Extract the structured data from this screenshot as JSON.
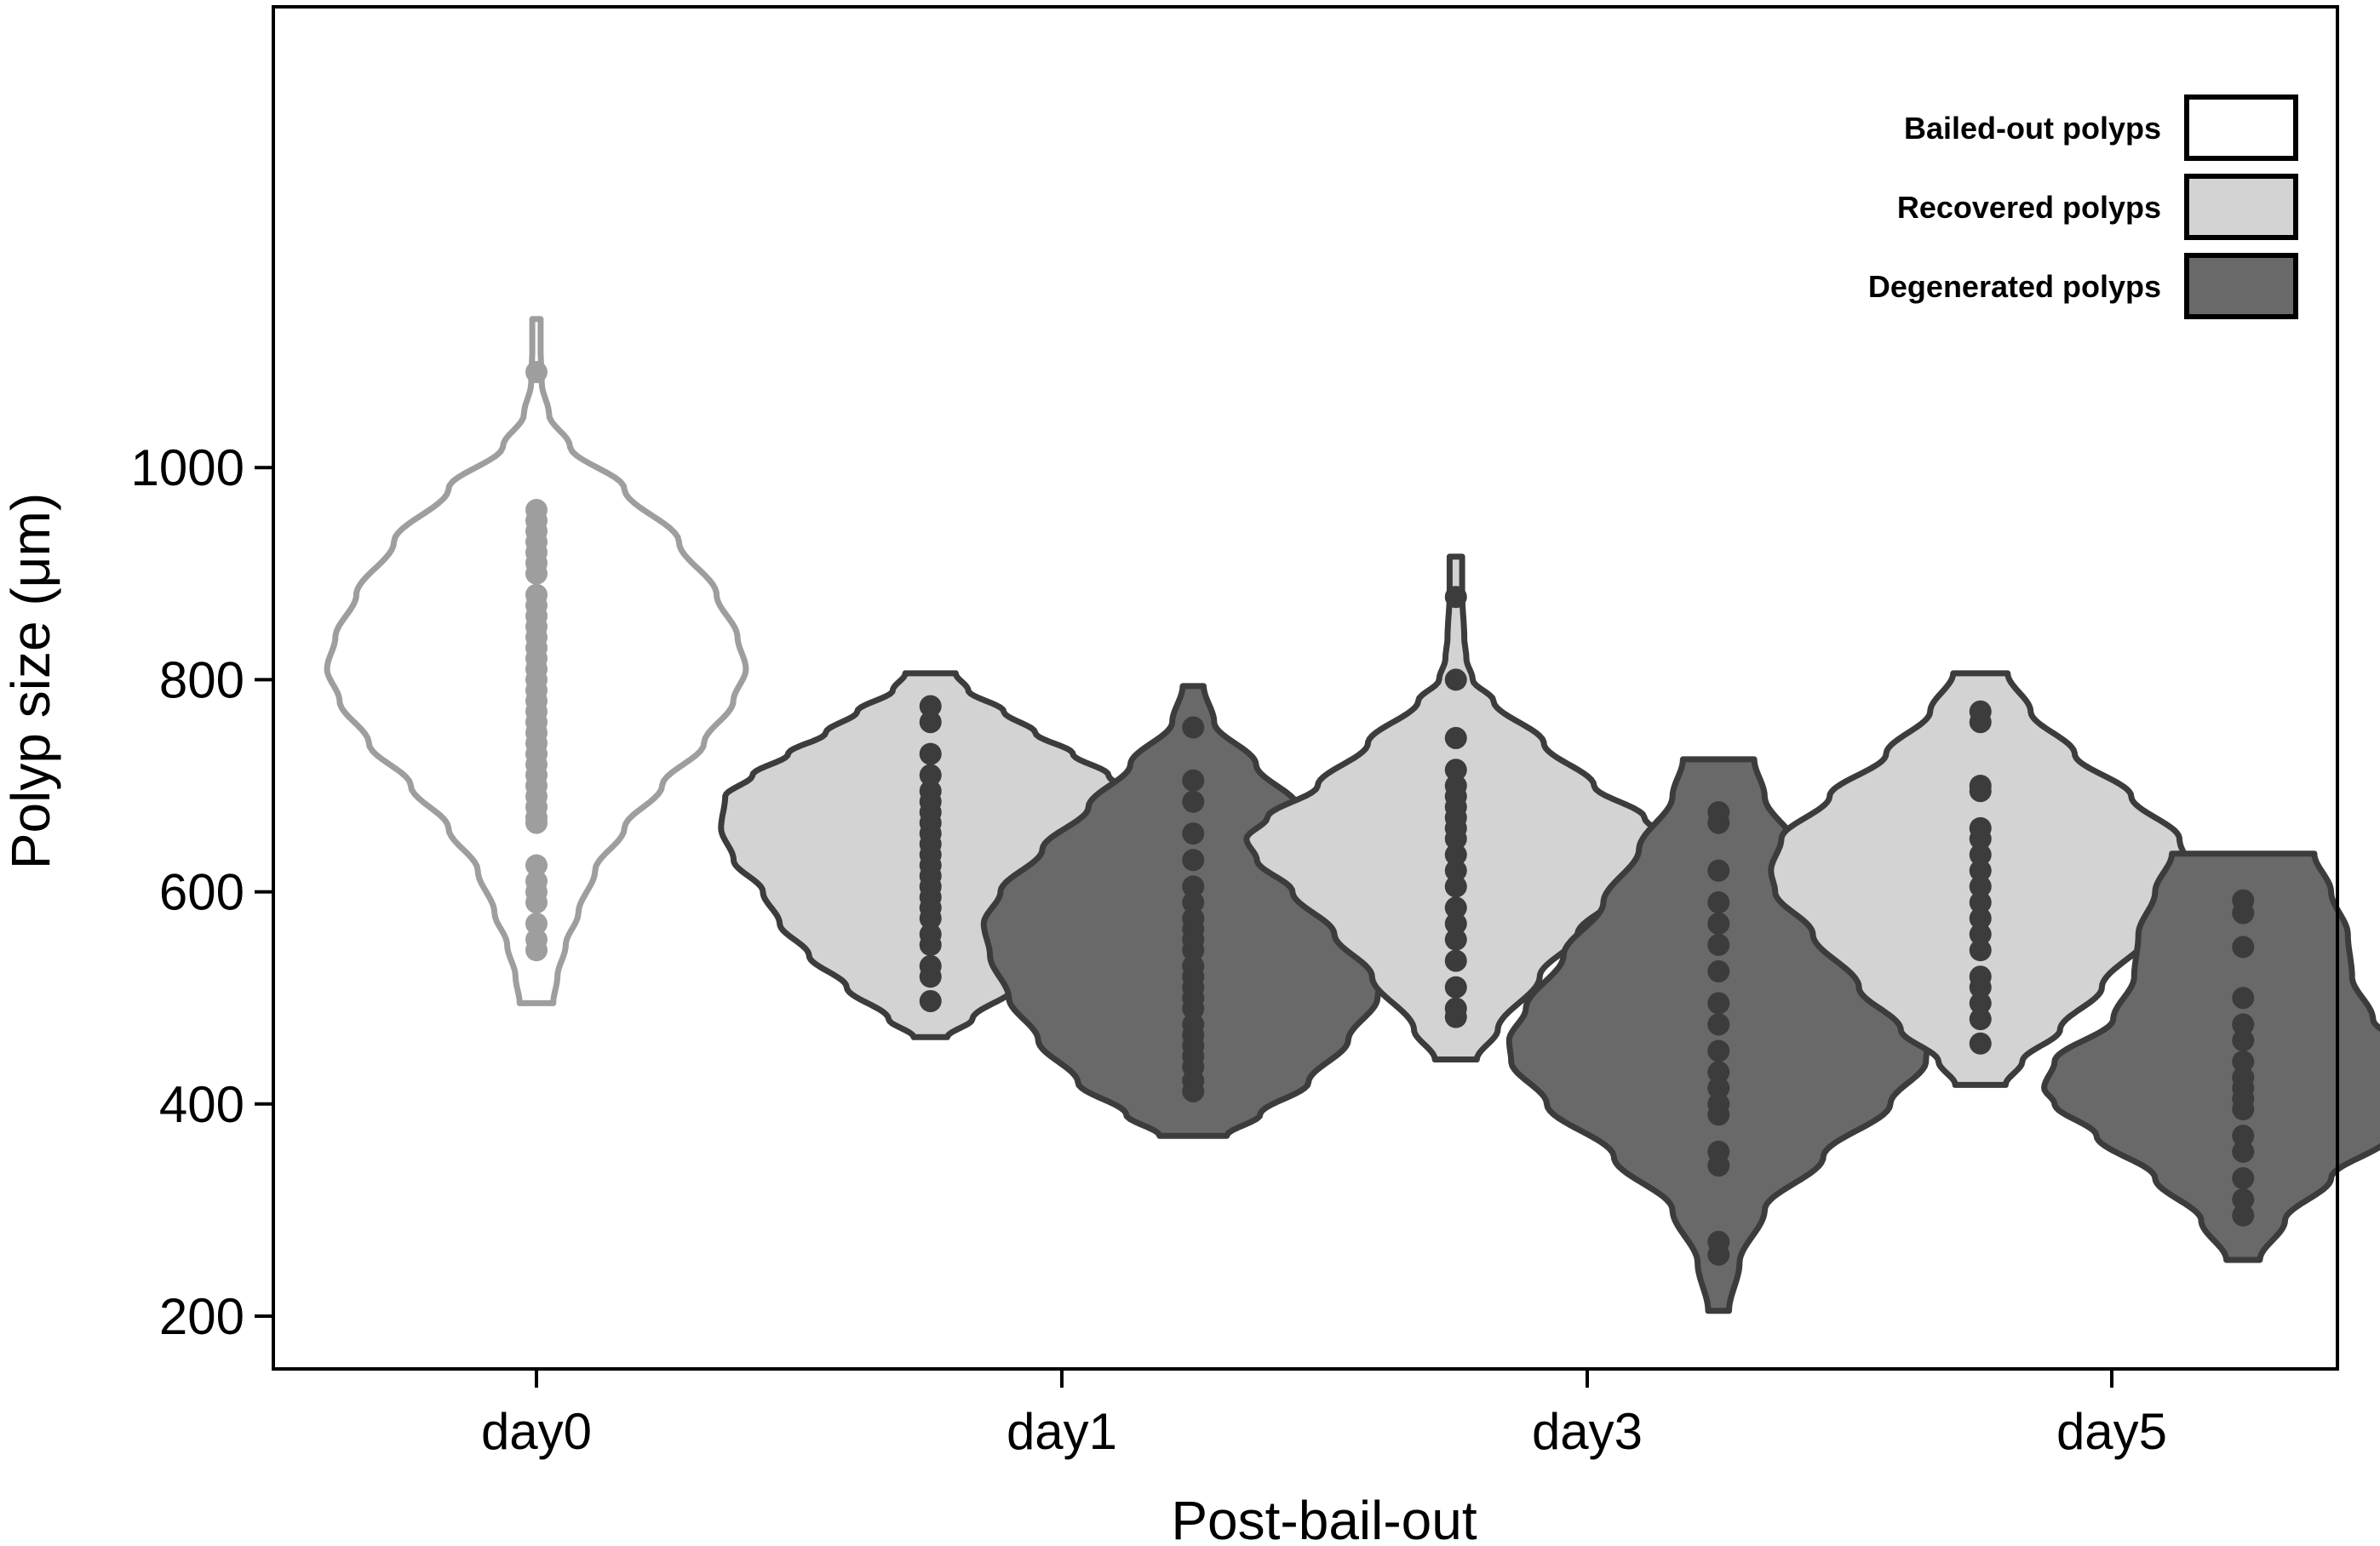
{
  "chart_data": {
    "type": "violin",
    "title": "",
    "xlabel": "Post-bail-out",
    "ylabel": "Polyp size (μm)",
    "ylim": [
      180,
      1210
    ],
    "yticks": [
      200,
      400,
      600,
      800,
      1000
    ],
    "categories": [
      "day0",
      "day1",
      "day3",
      "day5"
    ],
    "legend_position": "top-right",
    "legend": [
      {
        "label": "Bailed-out polyps",
        "fill": "#ffffff",
        "stroke": "#000000"
      },
      {
        "label": "Recovered polyps",
        "fill": "#d3d3d3",
        "stroke": "#000000"
      },
      {
        "label": "Degenerated polyps",
        "fill": "#696969",
        "stroke": "#000000"
      }
    ],
    "violins": [
      {
        "category": "day0",
        "group": "Bailed-out polyps",
        "offset": 0,
        "fill": "#ffffff",
        "stroke": "#9e9e9e",
        "dot": "#9e9e9e",
        "min": 495,
        "max": 1140,
        "profile": [
          [
            495,
            0.08
          ],
          [
            520,
            0.1
          ],
          [
            550,
            0.14
          ],
          [
            580,
            0.2
          ],
          [
            620,
            0.28
          ],
          [
            660,
            0.42
          ],
          [
            700,
            0.6
          ],
          [
            740,
            0.8
          ],
          [
            780,
            0.94
          ],
          [
            810,
            1.0
          ],
          [
            840,
            0.96
          ],
          [
            880,
            0.86
          ],
          [
            930,
            0.68
          ],
          [
            980,
            0.42
          ],
          [
            1020,
            0.16
          ],
          [
            1050,
            0.06
          ],
          [
            1080,
            0.025
          ],
          [
            1110,
            0.02
          ],
          [
            1140,
            0.02
          ]
        ],
        "points": [
          545,
          555,
          570,
          590,
          600,
          610,
          625,
          665,
          670,
          680,
          690,
          700,
          710,
          720,
          730,
          740,
          750,
          760,
          770,
          780,
          790,
          800,
          810,
          820,
          830,
          840,
          850,
          860,
          870,
          880,
          900,
          910,
          920,
          930,
          940,
          950,
          960,
          1090
        ]
      },
      {
        "category": "day1",
        "group": "Recovered polyps",
        "offset": -0.25,
        "fill": "#d3d3d3",
        "stroke": "#3c3c3c",
        "dot": "#3c3c3c",
        "min": 463,
        "max": 806,
        "profile": [
          [
            463,
            0.08
          ],
          [
            480,
            0.2
          ],
          [
            510,
            0.4
          ],
          [
            540,
            0.58
          ],
          [
            570,
            0.72
          ],
          [
            600,
            0.8
          ],
          [
            630,
            0.94
          ],
          [
            660,
            1.0
          ],
          [
            690,
            0.98
          ],
          [
            710,
            0.85
          ],
          [
            730,
            0.68
          ],
          [
            750,
            0.5
          ],
          [
            770,
            0.35
          ],
          [
            790,
            0.18
          ],
          [
            806,
            0.12
          ]
        ],
        "points": [
          497,
          520,
          530,
          550,
          560,
          575,
          585,
          595,
          605,
          615,
          625,
          635,
          645,
          655,
          665,
          675,
          685,
          695,
          710,
          730,
          760,
          775
        ]
      },
      {
        "category": "day1",
        "group": "Degenerated polyps",
        "offset": 0.25,
        "fill": "#696969",
        "stroke": "#3c3c3c",
        "dot": "#3c3c3c",
        "min": 370,
        "max": 794,
        "profile": [
          [
            370,
            0.16
          ],
          [
            390,
            0.32
          ],
          [
            420,
            0.55
          ],
          [
            460,
            0.74
          ],
          [
            500,
            0.88
          ],
          [
            540,
            0.97
          ],
          [
            570,
            1.0
          ],
          [
            600,
            0.92
          ],
          [
            640,
            0.72
          ],
          [
            680,
            0.5
          ],
          [
            720,
            0.3
          ],
          [
            760,
            0.1
          ],
          [
            794,
            0.05
          ]
        ],
        "points": [
          412,
          422,
          435,
          445,
          455,
          465,
          475,
          490,
          500,
          510,
          520,
          530,
          545,
          555,
          565,
          575,
          590,
          605,
          630,
          655,
          685,
          705,
          755
        ]
      },
      {
        "category": "day3",
        "group": "Recovered polyps",
        "offset": -0.25,
        "fill": "#d3d3d3",
        "stroke": "#3c3c3c",
        "dot": "#3c3c3c",
        "min": 442,
        "max": 916,
        "profile": [
          [
            442,
            0.1
          ],
          [
            470,
            0.2
          ],
          [
            520,
            0.4
          ],
          [
            560,
            0.58
          ],
          [
            600,
            0.78
          ],
          [
            630,
            0.95
          ],
          [
            650,
            1.0
          ],
          [
            670,
            0.9
          ],
          [
            700,
            0.66
          ],
          [
            740,
            0.42
          ],
          [
            780,
            0.18
          ],
          [
            800,
            0.08
          ],
          [
            820,
            0.05
          ],
          [
            840,
            0.04
          ],
          [
            880,
            0.03
          ],
          [
            916,
            0.03
          ]
        ],
        "points": [
          482,
          490,
          510,
          535,
          555,
          570,
          585,
          605,
          620,
          635,
          650,
          660,
          670,
          680,
          690,
          700,
          715,
          745,
          800,
          878
        ]
      },
      {
        "category": "day3",
        "group": "Degenerated polyps",
        "offset": 0.25,
        "fill": "#696969",
        "stroke": "#3c3c3c",
        "dot": "#3c3c3c",
        "min": 205,
        "max": 725,
        "profile": [
          [
            205,
            0.05
          ],
          [
            250,
            0.1
          ],
          [
            300,
            0.22
          ],
          [
            350,
            0.5
          ],
          [
            400,
            0.82
          ],
          [
            440,
            0.99
          ],
          [
            460,
            1.0
          ],
          [
            490,
            0.92
          ],
          [
            540,
            0.74
          ],
          [
            590,
            0.55
          ],
          [
            640,
            0.38
          ],
          [
            690,
            0.22
          ],
          [
            725,
            0.17
          ]
        ],
        "points": [
          258,
          270,
          342,
          355,
          390,
          400,
          415,
          430,
          450,
          475,
          495,
          525,
          550,
          570,
          590,
          620,
          665,
          675
        ]
      },
      {
        "category": "day5",
        "group": "Recovered polyps",
        "offset": -0.25,
        "fill": "#d3d3d3",
        "stroke": "#3c3c3c",
        "dot": "#3c3c3c",
        "min": 418,
        "max": 806,
        "profile": [
          [
            418,
            0.12
          ],
          [
            440,
            0.2
          ],
          [
            470,
            0.38
          ],
          [
            510,
            0.58
          ],
          [
            560,
            0.8
          ],
          [
            600,
            0.98
          ],
          [
            620,
            1.0
          ],
          [
            650,
            0.95
          ],
          [
            690,
            0.72
          ],
          [
            730,
            0.45
          ],
          [
            770,
            0.24
          ],
          [
            806,
            0.13
          ]
        ],
        "points": [
          457,
          480,
          495,
          510,
          520,
          545,
          560,
          575,
          590,
          605,
          620,
          635,
          650,
          660,
          695,
          700,
          760,
          770
        ]
      },
      {
        "category": "day5",
        "group": "Degenerated polyps",
        "offset": 0.25,
        "fill": "#696969",
        "stroke": "#3c3c3c",
        "dot": "#3c3c3c",
        "min": 253,
        "max": 636,
        "profile": [
          [
            253,
            0.08
          ],
          [
            290,
            0.2
          ],
          [
            330,
            0.42
          ],
          [
            370,
            0.7
          ],
          [
            400,
            0.9
          ],
          [
            415,
            0.95
          ],
          [
            440,
            0.9
          ],
          [
            480,
            0.62
          ],
          [
            520,
            0.52
          ],
          [
            560,
            0.5
          ],
          [
            600,
            0.42
          ],
          [
            636,
            0.34
          ]
        ],
        "points": [
          295,
          310,
          330,
          355,
          370,
          395,
          405,
          415,
          425,
          440,
          460,
          475,
          500,
          548,
          580,
          592
        ]
      }
    ]
  }
}
